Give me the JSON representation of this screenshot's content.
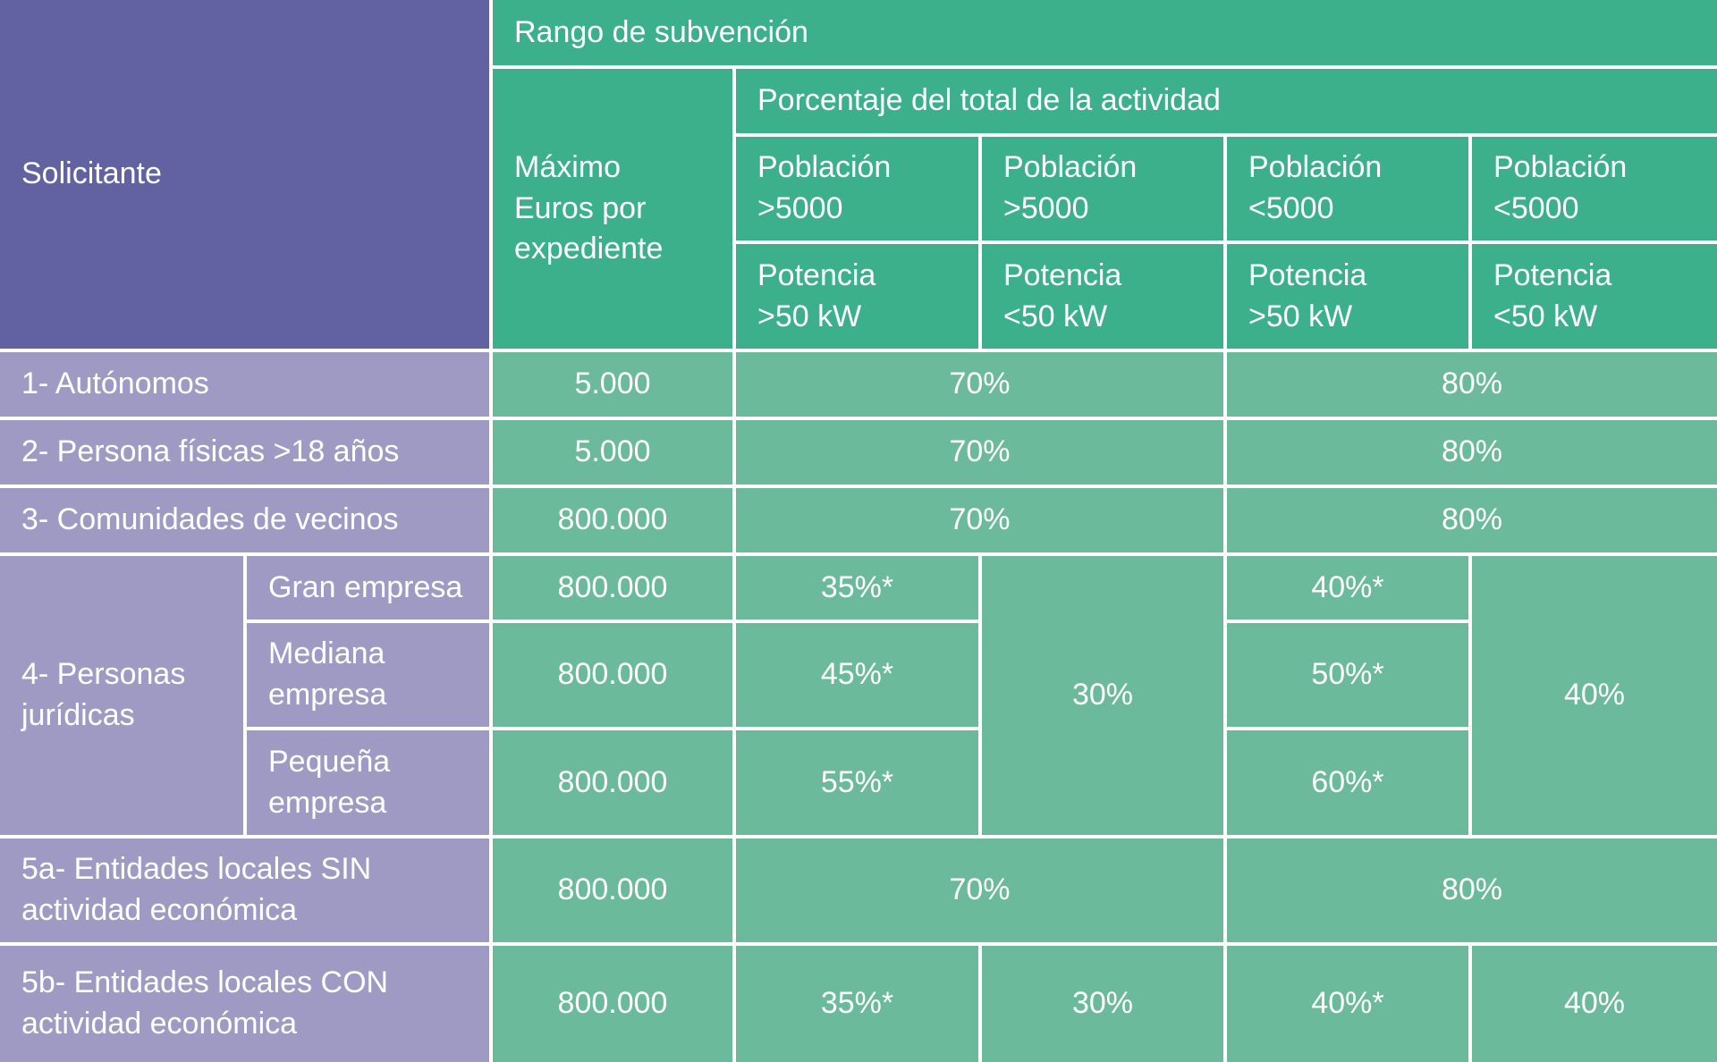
{
  "header": {
    "applicant": "Solicitante",
    "grant_range": "Rango de subvención",
    "max_amount": "Máximo\nEuros por\nexpediente",
    "activity_percentage": "Porcentaje del total de la actividad",
    "population": [
      "Población\n>5000",
      "Población\n>5000",
      "Población\n<5000",
      "Población\n<5000"
    ],
    "power": [
      "Potencia\n>50 kW",
      "Potencia\n<50 kW",
      "Potencia\n>50 kW",
      "Potencia\n<50 kW"
    ]
  },
  "rows": [
    {
      "label": "1- Autónomos",
      "max": "5.000",
      "percentages": [
        "70%",
        "80%"
      ]
    },
    {
      "label": "2- Persona físicas >18 años",
      "max": "5.000",
      "percentages": [
        "70%",
        "80%"
      ]
    },
    {
      "label": "3- Comunidades de vecinos",
      "max": "800.000",
      "percentages": [
        "70%",
        "80%"
      ]
    },
    {
      "label": "4- Personas\njurídicas",
      "shared_percentages": [
        "30%",
        "40%"
      ],
      "subrows": [
        {
          "label": "Gran empresa",
          "max": "800.000",
          "percentages": [
            "35%*",
            "40%*"
          ]
        },
        {
          "label": "Mediana\nempresa",
          "max": "800.000",
          "percentages": [
            "45%*",
            "50%*"
          ]
        },
        {
          "label": "Pequeña\nempresa",
          "max": "800.000",
          "percentages": [
            "55%*",
            "60%*"
          ]
        }
      ]
    },
    {
      "label": "5a- Entidades locales SIN\nactividad económica",
      "max": "800.000",
      "percentages": [
        "70%",
        "80%"
      ]
    },
    {
      "label": "5b- Entidades locales CON\nactividad económica",
      "max": "800.000",
      "percentages": [
        "35%*",
        "30%",
        "40%*",
        "40%"
      ]
    }
  ]
}
